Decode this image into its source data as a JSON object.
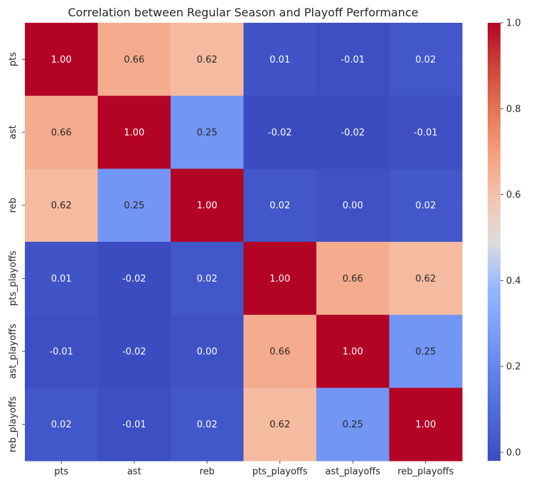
{
  "chart_data": {
    "type": "heatmap",
    "title": "Correlation between Regular Season and Playoff Performance",
    "xlabel": "",
    "ylabel": "",
    "x_categories": [
      "pts",
      "ast",
      "reb",
      "pts_playoffs",
      "ast_playoffs",
      "reb_playoffs"
    ],
    "y_categories": [
      "pts",
      "ast",
      "reb",
      "pts_playoffs",
      "ast_playoffs",
      "reb_playoffs"
    ],
    "values": [
      [
        1.0,
        0.66,
        0.62,
        0.01,
        -0.01,
        0.02
      ],
      [
        0.66,
        1.0,
        0.25,
        -0.02,
        -0.02,
        -0.01
      ],
      [
        0.62,
        0.25,
        1.0,
        0.02,
        0.0,
        0.02
      ],
      [
        0.01,
        -0.02,
        0.02,
        1.0,
        0.66,
        0.62
      ],
      [
        -0.01,
        -0.02,
        0.0,
        0.66,
        1.0,
        0.25
      ],
      [
        0.02,
        -0.01,
        0.02,
        0.62,
        0.25,
        1.0
      ]
    ],
    "colormap": "coolwarm",
    "color_range": [
      -0.02,
      1.0
    ],
    "colorbar_ticks": [
      "0.0",
      "0.2",
      "0.4",
      "0.6",
      "0.8",
      "1.0"
    ],
    "colorbar_tick_values": [
      0.0,
      0.2,
      0.4,
      0.6,
      0.8,
      1.0
    ],
    "annotation_format": "2 decimals",
    "grid": false
  }
}
